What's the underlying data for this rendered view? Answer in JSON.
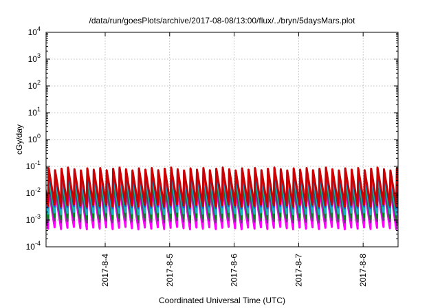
{
  "chart_data": {
    "type": "area",
    "title": "/data/run/goesPlots/archive/2017-08-08/13:00/flux/../bryn/5daysMars.plot",
    "xlabel": "Coordinated Universal Time (UTC)",
    "ylabel": "cGy/day",
    "y_scale": "log",
    "ylim": [
      0.0001,
      10000
    ],
    "y_ticks": [
      {
        "base": "10",
        "exp": "-4",
        "value": 0.0001
      },
      {
        "base": "10",
        "exp": "-3",
        "value": 0.001
      },
      {
        "base": "10",
        "exp": "-2",
        "value": 0.01
      },
      {
        "base": "10",
        "exp": "-1",
        "value": 0.1
      },
      {
        "base": "10",
        "exp": "0",
        "value": 1
      },
      {
        "base": "10",
        "exp": "1",
        "value": 10
      },
      {
        "base": "10",
        "exp": "2",
        "value": 100
      },
      {
        "base": "10",
        "exp": "3",
        "value": 1000
      },
      {
        "base": "10",
        "exp": "4",
        "value": 10000
      }
    ],
    "xlim": [
      "2017-08-03T02:00",
      "2017-08-08T13:00"
    ],
    "x_ticks": [
      "2017-8-4",
      "2017-8-5",
      "2017-8-6",
      "2017-8-7",
      "2017-8-8"
    ],
    "x_tick_dates": [
      "2017-08-04",
      "2017-08-05",
      "2017-08-06",
      "2017-08-07",
      "2017-08-08"
    ],
    "grid": true,
    "pattern": "sawtooth",
    "teeth_per_day": 10,
    "series": [
      {
        "color": "#ff00ff",
        "low": 0.0005,
        "high": 0.015
      },
      {
        "color": "#7b2c8c",
        "low": 0.0009,
        "high": 0.02
      },
      {
        "color": "#0a7d1e",
        "low": 0.0012,
        "high": 0.028
      },
      {
        "color": "#18b0c8",
        "low": 0.0018,
        "high": 0.045
      },
      {
        "color": "#2a52d0",
        "low": 0.003,
        "high": 0.075
      },
      {
        "color": "#cc0000",
        "low": 0.0035,
        "high": 0.08
      }
    ]
  }
}
